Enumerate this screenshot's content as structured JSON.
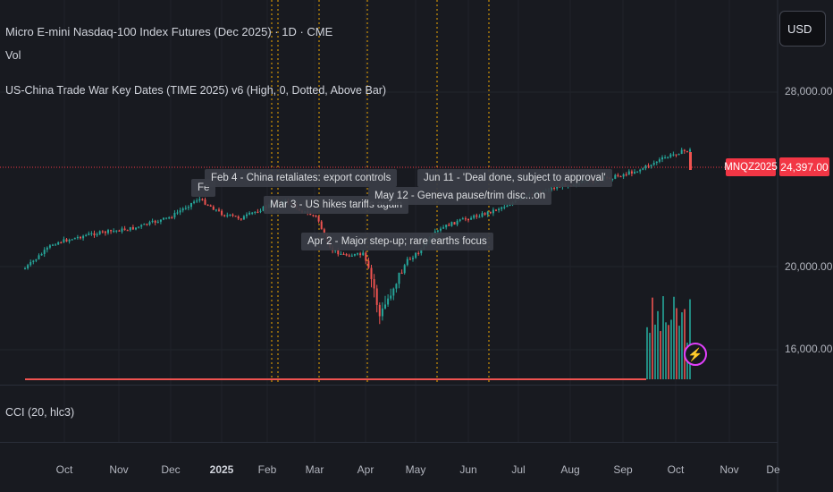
{
  "header": {
    "title": "Micro E-mini Nasdaq-100 Index Futures (Dec 2025) · 1D · CME",
    "volume_label": "Vol",
    "indicator_label": "US-China Trade War Key Dates (TIME 2025) v6 (High, 0, Dotted, Above Bar)",
    "cci_label": "CCI (20, hlc3)"
  },
  "currency": "USD",
  "price_axis": {
    "ticks": [
      "28,000.00",
      "20,000.00",
      "16,000.00"
    ],
    "current_price": "24,397.00",
    "symbol_tag": "MNQZ2025"
  },
  "time_axis": {
    "labels": [
      "Oct",
      "Nov",
      "Dec",
      "2025",
      "Feb",
      "Mar",
      "Apr",
      "May",
      "Jun",
      "Jul",
      "Aug",
      "Sep",
      "Oct",
      "Nov",
      "De"
    ]
  },
  "events": [
    {
      "label": "Feb 4 - China retaliates: export controls"
    },
    {
      "label": "Fe"
    },
    {
      "label": "Mar 3 - US hikes tariffs again"
    },
    {
      "label": "Apr 2 - Major step-up; rare earths focus"
    },
    {
      "label": "May 12 - Geneva pause/trim disc...on"
    },
    {
      "label": "Jun 11 - 'Deal done, subject to approval'"
    }
  ],
  "colors": {
    "background": "#181a20",
    "up": "#26a69a",
    "down": "#ef5350",
    "event_line": "#f2a900",
    "price_line": "#f23645",
    "badge": "#e040fb"
  },
  "icons": {
    "alert_badge": "lightning-bolt-icon"
  }
}
